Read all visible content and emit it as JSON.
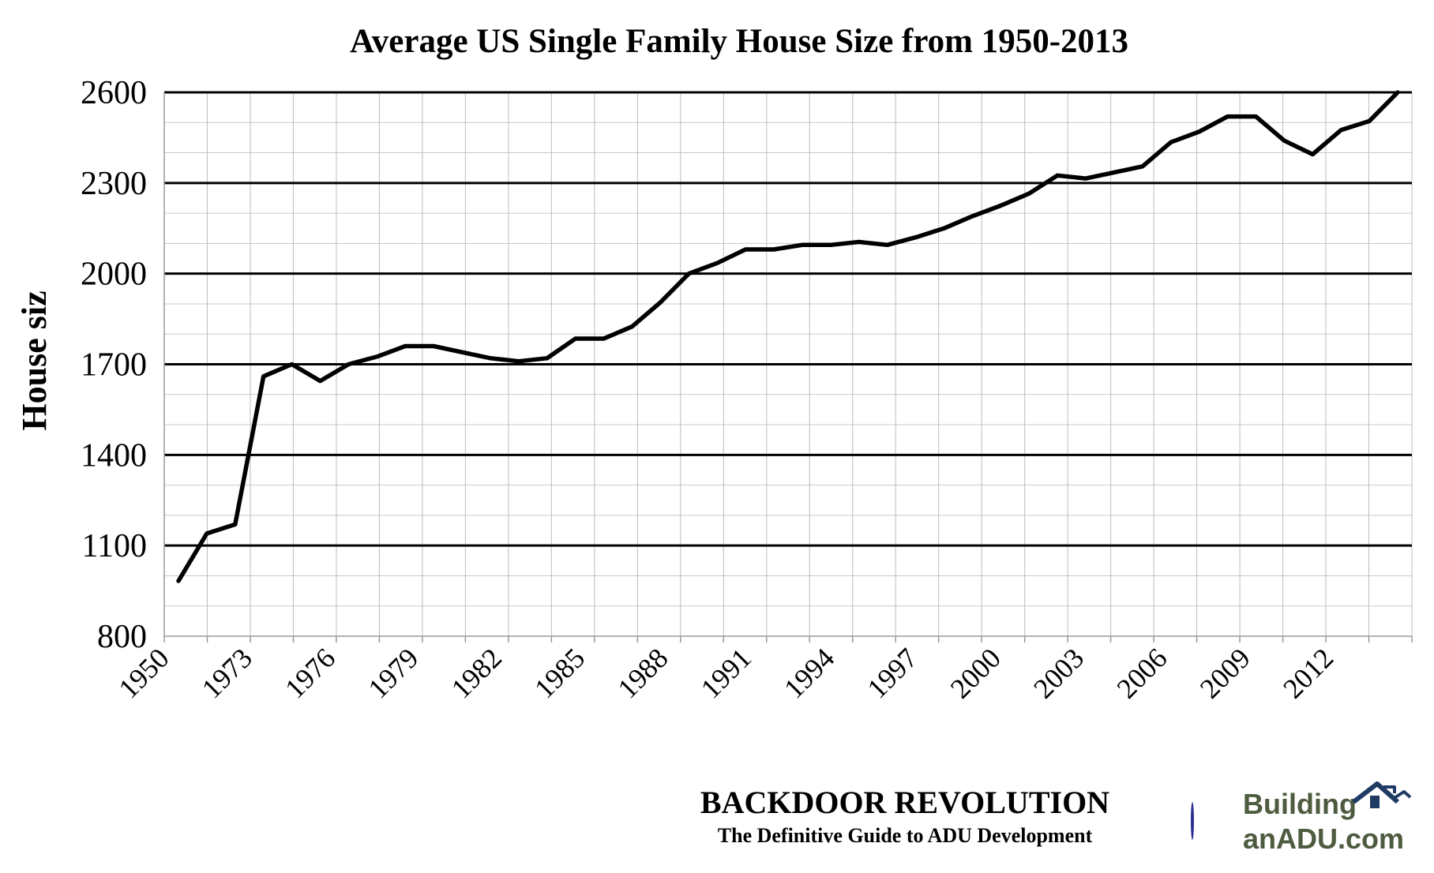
{
  "chart_data": {
    "type": "line",
    "title": "Average US Single Family House Size from 1950-2013",
    "ylabel": "House siz",
    "xlabel": "",
    "ylim": [
      800,
      2600
    ],
    "y_ticks": [
      "800",
      "1100",
      "1400",
      "1700",
      "2000",
      "2300",
      "2600"
    ],
    "x_tick_labels": [
      "1950",
      "1973",
      "1976",
      "1979",
      "1982",
      "1985",
      "1988",
      "1991",
      "1994",
      "1997",
      "2000",
      "2003",
      "2006",
      "2009",
      "2012"
    ],
    "grid": true,
    "series": [
      {
        "values": [
          983,
          1140,
          1170,
          1660,
          1700,
          1645,
          1700,
          1725,
          1760,
          1760,
          1740,
          1720,
          1710,
          1720,
          1785,
          1785,
          1825,
          1905,
          2000,
          2035,
          2080,
          2080,
          2095,
          2095,
          2105,
          2095,
          2120,
          2150,
          2190,
          2225,
          2265,
          2325,
          2315,
          2335,
          2355,
          2435,
          2470,
          2520,
          2520,
          2440,
          2395,
          2475,
          2505,
          2600
        ]
      }
    ]
  },
  "branding": {
    "title": "BACKDOOR REVOLUTION",
    "subtitle": "The Definitive Guide to ADU Development",
    "logo_line1": "Building",
    "logo_line2": "anADU.com",
    "logo_icon": "house-icon",
    "logo_color": "#4d5b3e"
  }
}
